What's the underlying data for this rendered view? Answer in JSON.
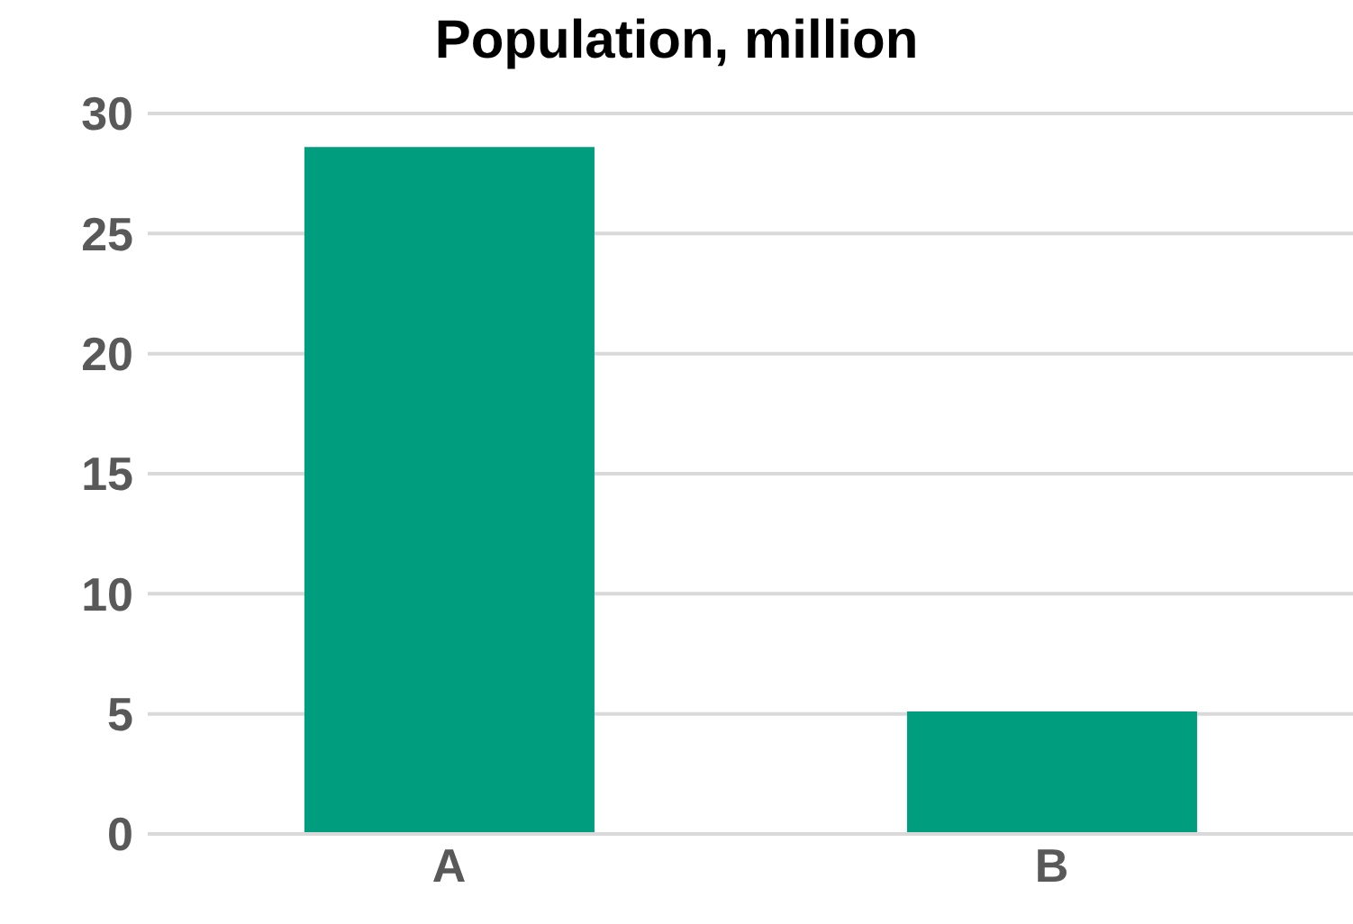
{
  "chart_data": {
    "type": "bar",
    "title": "Population, million",
    "categories": [
      "A",
      "B"
    ],
    "values": [
      28.6,
      5.1
    ],
    "color": "#009e7e",
    "ylim": [
      0,
      30
    ],
    "yticks": [
      0,
      5,
      10,
      15,
      20,
      25,
      30
    ],
    "grid": "y"
  }
}
